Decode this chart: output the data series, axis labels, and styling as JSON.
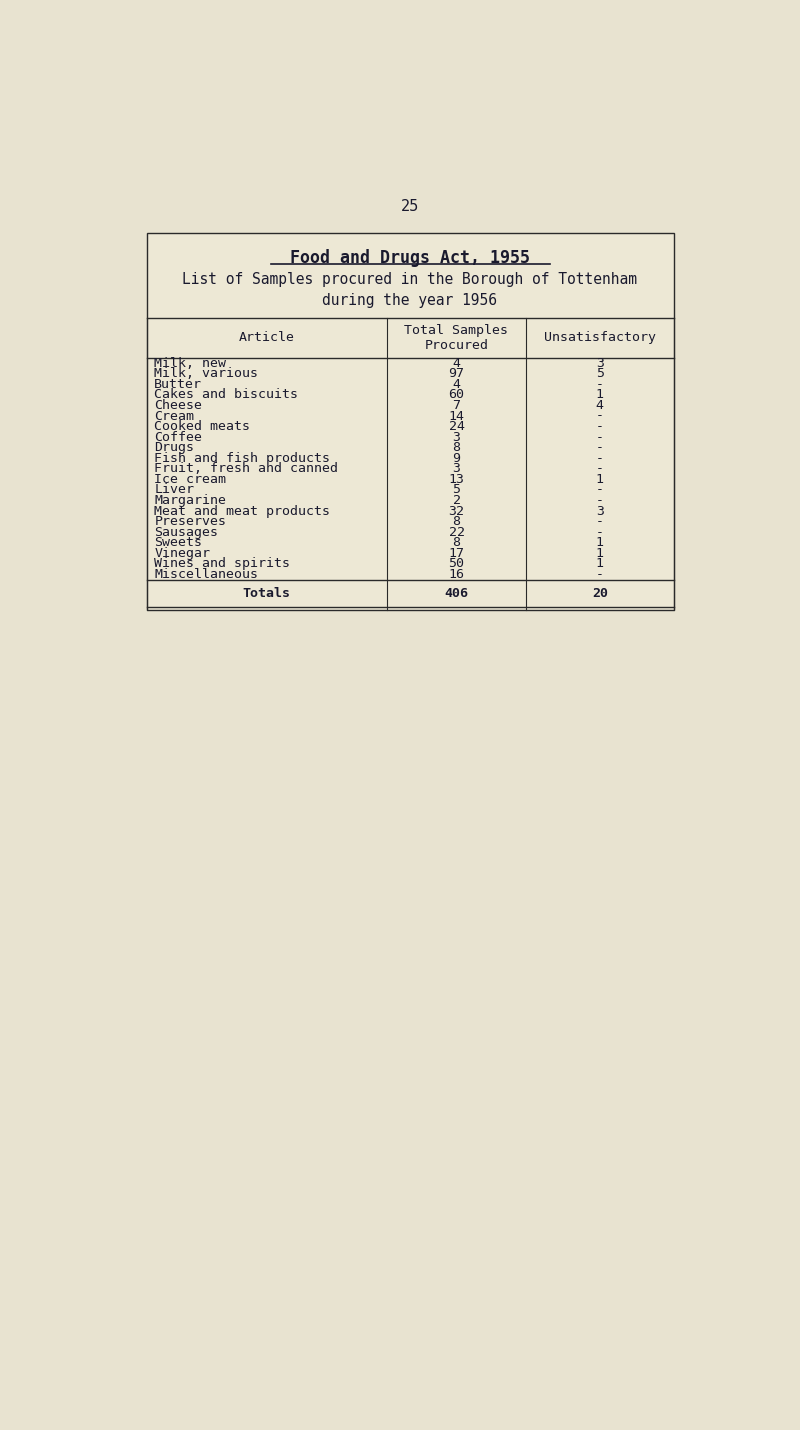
{
  "page_number": "25",
  "title_line1": "Food and Drugs Act, 1955",
  "subtitle_line1": "List of Samples procured in the Borough of Tottenham",
  "subtitle_line2": "during the year 1956",
  "col_headers": [
    "Article",
    "Total Samples\nProcured",
    "Unsatisfactory"
  ],
  "rows": [
    [
      "Milk, new",
      "4",
      "3"
    ],
    [
      "Milk, various",
      "97",
      "5"
    ],
    [
      "Butter",
      "4",
      "-"
    ],
    [
      "Cakes and biscuits",
      "60",
      "1"
    ],
    [
      "Cheese",
      "7",
      "4"
    ],
    [
      "Cream",
      "14",
      "-"
    ],
    [
      "Cooked meats",
      "24",
      "-"
    ],
    [
      "Coffee",
      "3",
      "-"
    ],
    [
      "Drugs",
      "8",
      "-"
    ],
    [
      "Fish and fish products",
      "9",
      "-"
    ],
    [
      "Fruit, fresh and canned",
      "3",
      "-"
    ],
    [
      "Ice cream",
      "13",
      "1"
    ],
    [
      "Liver",
      "5",
      "-"
    ],
    [
      "Margarine",
      "2",
      "-"
    ],
    [
      "Meat and meat products",
      "32",
      "3"
    ],
    [
      "Preserves",
      "8",
      "-"
    ],
    [
      "Sausages",
      "22",
      "-"
    ],
    [
      "Sweets",
      "8",
      "1"
    ],
    [
      "Vinegar",
      "17",
      "1"
    ],
    [
      "Wines and spirits",
      "50",
      "1"
    ],
    [
      "Miscellaneous",
      "16",
      "-"
    ]
  ],
  "totals_row": [
    "Totals",
    "406",
    "20"
  ],
  "bg_color": "#e8e3d0",
  "table_bg": "#ede8d5",
  "text_color": "#1a1a2e",
  "border_color": "#2a2a2a",
  "title_fontsize": 12,
  "subtitle_fontsize": 10.5,
  "table_fontsize": 9.5,
  "page_num_fontsize": 11
}
